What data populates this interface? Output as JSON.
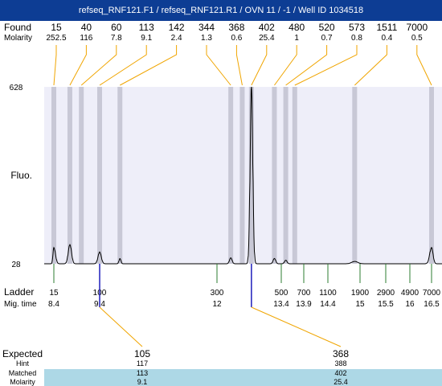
{
  "title": "refseq_RNF121.F1 / refseq_RNF121.R1 / OVN 11 / -1 / Well ID 1034518",
  "labels": {
    "found": "Found",
    "molarity": "Molarity",
    "fluo": "Fluo.",
    "ladder": "Ladder",
    "mig_time": "Mig. time",
    "expected": "Expected",
    "hint": "Hint",
    "matched": "Matched",
    "molarity_row": "Molarity"
  },
  "colors": {
    "title_bg": "#0d3d94",
    "plot_bg": "#eeeef9",
    "band": "#c8c8d6",
    "orange": "#f0a500",
    "green": "#2e7d32",
    "blue": "#1d1dbb",
    "table_highlight": "#add8e6"
  },
  "chart_data": {
    "type": "line",
    "y_axis": {
      "min_label": "28",
      "max_label": "628",
      "ylim": [
        28,
        628
      ]
    },
    "found_peaks": [
      {
        "size": "15",
        "molarity": "252.5",
        "time": 8.4
      },
      {
        "size": "40",
        "molarity": "116",
        "time": 8.75
      },
      {
        "size": "60",
        "molarity": "7.8",
        "time": 9.0
      },
      {
        "size": "113",
        "molarity": "9.1",
        "time": 9.4
      },
      {
        "size": "142",
        "molarity": "2.4",
        "time": 9.85
      },
      {
        "size": "344",
        "molarity": "1.3",
        "time": 12.3
      },
      {
        "size": "368",
        "molarity": "0.6",
        "time": 12.55
      },
      {
        "size": "402",
        "molarity": "25.4",
        "time": 12.75
      },
      {
        "size": "480",
        "molarity": "1",
        "time": 13.25
      },
      {
        "size": "520",
        "molarity": "0.7",
        "time": 13.5
      },
      {
        "size": "573",
        "molarity": "0.8",
        "time": 13.7
      },
      {
        "size": "1511",
        "molarity": "0.4",
        "time": 14.9
      },
      {
        "size": "7000",
        "molarity": "0.5",
        "time": 16.5
      }
    ],
    "ladder": [
      {
        "size": "15",
        "time": "8.4"
      },
      {
        "size": "100",
        "time": "9.4"
      },
      {
        "size": "300",
        "time": "12"
      },
      {
        "size": "500",
        "time": "13.4"
      },
      {
        "size": "700",
        "time": "13.9"
      },
      {
        "size": "1100",
        "time": "14.4"
      },
      {
        "size": "1900",
        "time": "15"
      },
      {
        "size": "2900",
        "time": "15.5"
      },
      {
        "size": "4900",
        "time": "16"
      },
      {
        "size": "7000",
        "time": "16.5"
      }
    ],
    "trace": {
      "baseline": 28,
      "peaks": [
        {
          "time": 8.4,
          "height": 55,
          "width": 0.05
        },
        {
          "time": 8.75,
          "height": 65,
          "width": 0.05
        },
        {
          "time": 9.4,
          "height": 40,
          "width": 0.05
        },
        {
          "time": 9.85,
          "height": 18,
          "width": 0.03
        },
        {
          "time": 12.3,
          "height": 20,
          "width": 0.04
        },
        {
          "time": 12.75,
          "height": 600,
          "width": 0.04
        },
        {
          "time": 13.25,
          "height": 18,
          "width": 0.04
        },
        {
          "time": 13.5,
          "height": 12,
          "width": 0.04
        },
        {
          "time": 14.9,
          "height": 8,
          "width": 0.08
        },
        {
          "time": 16.5,
          "height": 55,
          "width": 0.06
        }
      ]
    },
    "expected": [
      {
        "expected": "105",
        "hint": "117",
        "matched": "113",
        "molarity": "9.1",
        "time": 9.4
      },
      {
        "expected": "368",
        "hint": "388",
        "matched": "402",
        "molarity": "25.4",
        "time": 12.75
      }
    ]
  }
}
